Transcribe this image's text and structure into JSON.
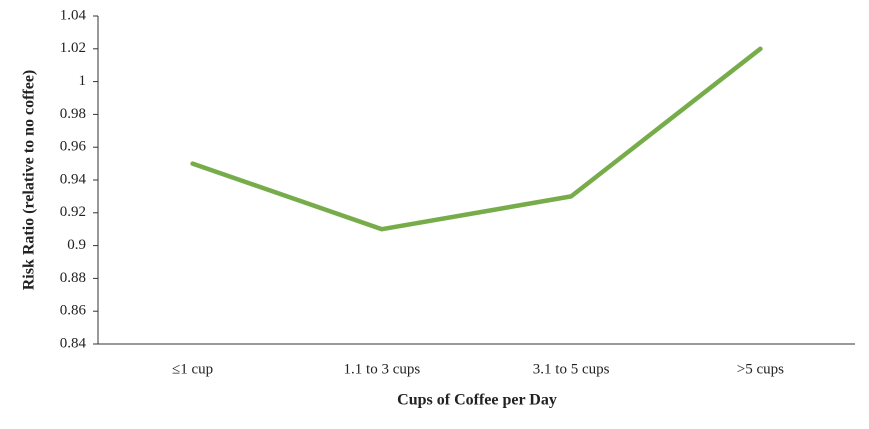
{
  "chart_data": {
    "type": "line",
    "x_label": "Cups of Coffee per Day",
    "y_label": "Risk Ratio (relative to no coffee)",
    "categories": [
      "≤1 cup",
      "1.1 to 3 cups",
      "3.1 to 5 cups",
      ">5 cups"
    ],
    "values": [
      0.95,
      0.91,
      0.93,
      1.02
    ],
    "color": "#77ac4b",
    "ylim": [
      0.84,
      1.04
    ],
    "yticks": [
      0.84,
      0.86,
      0.88,
      0.9,
      0.92,
      0.94,
      0.96,
      0.98,
      1,
      1.02,
      1.04
    ],
    "grid": false
  }
}
